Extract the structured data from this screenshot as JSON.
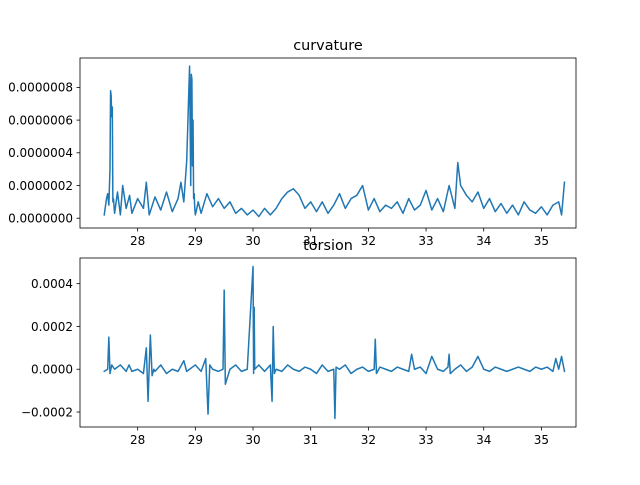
{
  "chart_data": [
    {
      "type": "line",
      "title": "curvature",
      "xlabel": "",
      "ylabel": "",
      "xlim": [
        27.0,
        35.6
      ],
      "ylim": [
        -6e-08,
        9.8e-07
      ],
      "xticks": [
        28,
        29,
        30,
        31,
        32,
        33,
        34,
        35
      ],
      "xtick_labels": [
        "28",
        "29",
        "30",
        "31",
        "32",
        "33",
        "34",
        "35"
      ],
      "yticks": [
        0.0,
        2e-07,
        4e-07,
        6e-07,
        8e-07
      ],
      "ytick_labels": [
        "0.0000000",
        "0.0000002",
        "0.0000004",
        "0.0000006",
        "0.0000008"
      ],
      "grid": false,
      "color": "#1f77b4",
      "series": [
        {
          "x": [
            27.42,
            27.46,
            27.48,
            27.5,
            27.52,
            27.53,
            27.54,
            27.55,
            27.56,
            27.57,
            27.58,
            27.6,
            27.65,
            27.7,
            27.74,
            27.8,
            27.86,
            27.9,
            28.0,
            28.1,
            28.15,
            28.2,
            28.3,
            28.4,
            28.5,
            28.6,
            28.7,
            28.75,
            28.8,
            28.85,
            28.9,
            28.92,
            28.93,
            28.94,
            28.95,
            28.96,
            28.97,
            28.98,
            28.99,
            29.0,
            29.05,
            29.1,
            29.2,
            29.3,
            29.4,
            29.5,
            29.6,
            29.7,
            29.8,
            29.9,
            30.0,
            30.1,
            30.2,
            30.3,
            30.4,
            30.5,
            30.6,
            30.7,
            30.8,
            30.9,
            31.0,
            31.1,
            31.2,
            31.3,
            31.4,
            31.5,
            31.6,
            31.7,
            31.8,
            31.9,
            32.0,
            32.1,
            32.2,
            32.3,
            32.4,
            32.5,
            32.6,
            32.7,
            32.8,
            32.9,
            33.0,
            33.1,
            33.2,
            33.3,
            33.4,
            33.5,
            33.55,
            33.6,
            33.7,
            33.8,
            33.9,
            34.0,
            34.1,
            34.2,
            34.3,
            34.4,
            34.5,
            34.6,
            34.7,
            34.8,
            34.9,
            35.0,
            35.1,
            35.2,
            35.3,
            35.35,
            35.4
          ],
          "y": [
            2e-08,
            1.2e-07,
            1.5e-07,
            8e-08,
            3e-07,
            7.8e-07,
            7.5e-07,
            6.2e-07,
            6.8e-07,
            1e-07,
            1.2e-07,
            3e-08,
            1.6e-07,
            2e-08,
            2e-07,
            6e-08,
            1.4e-07,
            3e-08,
            1.2e-07,
            6e-08,
            2.2e-07,
            2e-08,
            1.3e-07,
            5e-08,
            1.6e-07,
            4e-08,
            1.2e-07,
            2.2e-07,
            1e-07,
            3.5e-07,
            9.3e-07,
            2e-07,
            8.8e-07,
            8.5e-07,
            3.2e-07,
            6e-07,
            1.2e-07,
            1.5e-07,
            6e-08,
            2e-08,
            1e-07,
            3e-08,
            1.5e-07,
            7e-08,
            1.2e-07,
            6e-08,
            1e-07,
            3e-08,
            6e-08,
            2e-08,
            5e-08,
            1e-08,
            6e-08,
            2e-08,
            6e-08,
            1.2e-07,
            1.6e-07,
            1.8e-07,
            1.4e-07,
            6e-08,
            1e-07,
            4e-08,
            1e-07,
            3e-08,
            8e-08,
            1.5e-07,
            6e-08,
            1.2e-07,
            1.4e-07,
            2e-07,
            5e-08,
            1.2e-07,
            4e-08,
            8e-08,
            6e-08,
            1e-07,
            3e-08,
            1.2e-07,
            5e-08,
            8e-08,
            1.7e-07,
            5e-08,
            1.2e-07,
            4e-08,
            2e-07,
            6e-08,
            3.4e-07,
            2e-07,
            1.4e-07,
            1e-07,
            1.6e-07,
            6e-08,
            1.2e-07,
            4e-08,
            9e-08,
            3e-08,
            8e-08,
            2e-08,
            1e-07,
            5e-08,
            3e-08,
            7e-08,
            2e-08,
            8e-08,
            1e-07,
            2e-08,
            2.2e-07
          ]
        }
      ]
    },
    {
      "type": "line",
      "title": "torsion",
      "xlabel": "",
      "ylabel": "",
      "xlim": [
        27.0,
        35.6
      ],
      "ylim": [
        -0.00027,
        0.00052
      ],
      "xticks": [
        28,
        29,
        30,
        31,
        32,
        33,
        34,
        35
      ],
      "xtick_labels": [
        "28",
        "29",
        "30",
        "31",
        "32",
        "33",
        "34",
        "35"
      ],
      "yticks": [
        -0.0002,
        0.0,
        0.0002,
        0.0004
      ],
      "ytick_labels": [
        "−0.0002",
        "0.0000",
        "0.0002",
        "0.0004"
      ],
      "grid": false,
      "color": "#1f77b4",
      "series": [
        {
          "x": [
            27.42,
            27.48,
            27.5,
            27.52,
            27.55,
            27.6,
            27.7,
            27.8,
            27.85,
            27.9,
            28.0,
            28.1,
            28.15,
            28.18,
            28.2,
            28.22,
            28.25,
            28.28,
            28.3,
            28.4,
            28.5,
            28.6,
            28.7,
            28.8,
            28.85,
            28.9,
            29.0,
            29.1,
            29.18,
            29.2,
            29.22,
            29.25,
            29.3,
            29.4,
            29.48,
            29.5,
            29.52,
            29.6,
            29.7,
            29.8,
            29.9,
            30.0,
            30.01,
            30.02,
            30.03,
            30.1,
            30.2,
            30.3,
            30.33,
            30.35,
            30.37,
            30.4,
            30.5,
            30.6,
            30.7,
            30.8,
            30.9,
            31.0,
            31.1,
            31.2,
            31.3,
            31.4,
            31.42,
            31.44,
            31.5,
            31.6,
            31.7,
            31.8,
            31.9,
            32.0,
            32.1,
            32.12,
            32.14,
            32.2,
            32.3,
            32.4,
            32.5,
            32.6,
            32.7,
            32.75,
            32.8,
            32.9,
            33.0,
            33.1,
            33.2,
            33.3,
            33.38,
            33.4,
            33.42,
            33.5,
            33.6,
            33.7,
            33.8,
            33.9,
            34.0,
            34.1,
            34.2,
            34.3,
            34.4,
            34.5,
            34.6,
            34.7,
            34.8,
            34.9,
            35.0,
            35.1,
            35.2,
            35.25,
            35.3,
            35.35,
            35.4
          ],
          "y": [
            -1e-05,
            0.0,
            0.00015,
            -2e-05,
            2e-05,
            0.0,
            2e-05,
            -1e-05,
            2e-05,
            -1e-05,
            0.0,
            -2e-05,
            0.0001,
            -0.00015,
            1e-05,
            0.00016,
            -3e-05,
            0.0,
            -1e-05,
            2e-05,
            -2e-05,
            0.0,
            -1e-05,
            4e-05,
            -1e-05,
            0.0,
            2e-05,
            -1e-05,
            5e-05,
            -8e-05,
            -0.00021,
            2e-05,
            0.0,
            -1e-05,
            0.0,
            0.00037,
            -7e-05,
            0.0,
            2e-05,
            -1e-05,
            0.0,
            0.00048,
            -2e-05,
            0.00029,
            0.0,
            2e-05,
            -1e-05,
            2e-05,
            -0.00015,
            0.0002,
            -2e-05,
            0.0,
            -1e-05,
            2e-05,
            0.0,
            -1e-05,
            1e-05,
            0.0,
            -2e-05,
            2e-05,
            -1e-05,
            0.0,
            -0.00023,
            1e-05,
            0.0,
            2e-05,
            -2e-05,
            0.0,
            1e-05,
            -1e-05,
            0.0,
            0.00014,
            -2e-05,
            1e-05,
            0.0,
            -1e-05,
            1e-05,
            0.0,
            -1e-05,
            7e-05,
            0.0,
            1e-05,
            -2e-05,
            6e-05,
            0.0,
            -1e-05,
            1e-05,
            7e-05,
            -2e-05,
            0.0,
            2e-05,
            -1e-05,
            1e-05,
            6e-05,
            0.0,
            -1e-05,
            1e-05,
            0.0,
            -1e-05,
            0.0,
            1e-05,
            0.0,
            -1e-05,
            1e-05,
            0.0,
            1e-05,
            -1e-05,
            5e-05,
            0.0,
            6e-05,
            -1e-05
          ]
        }
      ]
    }
  ]
}
